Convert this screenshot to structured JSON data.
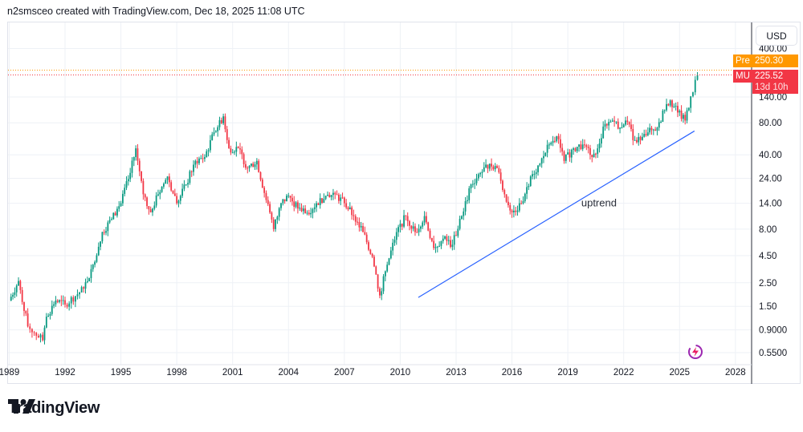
{
  "caption": "n2smsceo created with TradingView.com, Dec 18, 2025 11:08 UTC",
  "currency": "USD",
  "brand": "TradingView",
  "price_labels": {
    "pre": {
      "tag": "Pre",
      "value": "250.30",
      "color": "#ff9800"
    },
    "last": {
      "tag": "MU",
      "value": "225.52",
      "countdown": "13d 10h",
      "color": "#f23645"
    }
  },
  "chart_data": {
    "type": "candlestick",
    "symbol": "MU",
    "y_scale": "log",
    "ylim": [
      0.5,
      420
    ],
    "xlim": [
      1989,
      2029.5
    ],
    "grid": true,
    "y_ticks": [
      "400.00",
      "140.00",
      "80.00",
      "40.00",
      "24.00",
      "14.00",
      "8.00",
      "4.50",
      "2.50",
      "1.50",
      "0.9000",
      "0.5500"
    ],
    "x_ticks": [
      "1989",
      "1992",
      "1995",
      "1998",
      "2001",
      "2004",
      "2007",
      "2010",
      "2013",
      "2016",
      "2019",
      "2022",
      "2025",
      "2028"
    ],
    "up_color": "#089981",
    "down_color": "#f23645",
    "x": [
      1989.0,
      1989.5,
      1990.0,
      1990.8,
      1991.0,
      1991.5,
      1992.0,
      1993.0,
      1993.5,
      1994.0,
      1994.5,
      1995.0,
      1995.5,
      1995.8,
      1996.2,
      1996.6,
      1997.0,
      1997.5,
      1998.0,
      1998.5,
      1999.0,
      1999.5,
      2000.0,
      2000.5,
      2000.8,
      2001.3,
      2001.8,
      2002.3,
      2002.8,
      2003.2,
      2003.6,
      2004.0,
      2004.5,
      2005.0,
      2005.5,
      2006.0,
      2006.5,
      2007.0,
      2007.5,
      2008.0,
      2008.5,
      2008.9,
      2009.3,
      2009.8,
      2010.3,
      2010.8,
      2011.3,
      2011.8,
      2012.3,
      2012.8,
      2013.3,
      2013.8,
      2014.3,
      2014.8,
      2015.2,
      2015.6,
      2016.0,
      2016.5,
      2017.0,
      2017.5,
      2018.0,
      2018.4,
      2018.8,
      2019.3,
      2019.8,
      2020.2,
      2020.6,
      2021.0,
      2021.4,
      2021.8,
      2022.1,
      2022.6,
      2022.9,
      2023.3,
      2023.8,
      2024.3,
      2024.5,
      2024.9,
      2025.3,
      2025.6,
      2025.96
    ],
    "close": [
      1.7,
      2.6,
      0.97,
      0.72,
      1.2,
      1.7,
      1.56,
      2.2,
      3.7,
      7.5,
      9.9,
      14,
      27,
      46,
      17,
      11.5,
      17,
      25,
      14,
      21,
      35,
      38,
      65,
      92,
      46,
      46,
      30,
      35,
      15,
      8,
      14,
      16.5,
      12.5,
      11.4,
      14,
      16.5,
      17,
      14,
      10.6,
      7.5,
      4.4,
      1.9,
      3.7,
      7.5,
      10.6,
      7.5,
      10.6,
      5.3,
      6.5,
      5.7,
      10.6,
      21,
      27,
      33,
      30,
      17,
      11.5,
      14,
      25,
      33,
      50,
      60,
      35,
      46,
      50,
      40,
      46,
      78,
      84,
      72,
      84,
      55,
      55,
      65,
      72,
      120,
      130,
      100,
      84,
      142,
      225.52
    ],
    "annotations": [
      {
        "type": "trend_line",
        "from": [
          2010.97,
          1.82
        ],
        "to": [
          2025.8,
          67
        ],
        "color": "#2962ff"
      },
      {
        "type": "text",
        "text": "uptrend",
        "at": [
          2020.8,
          14
        ]
      }
    ]
  }
}
